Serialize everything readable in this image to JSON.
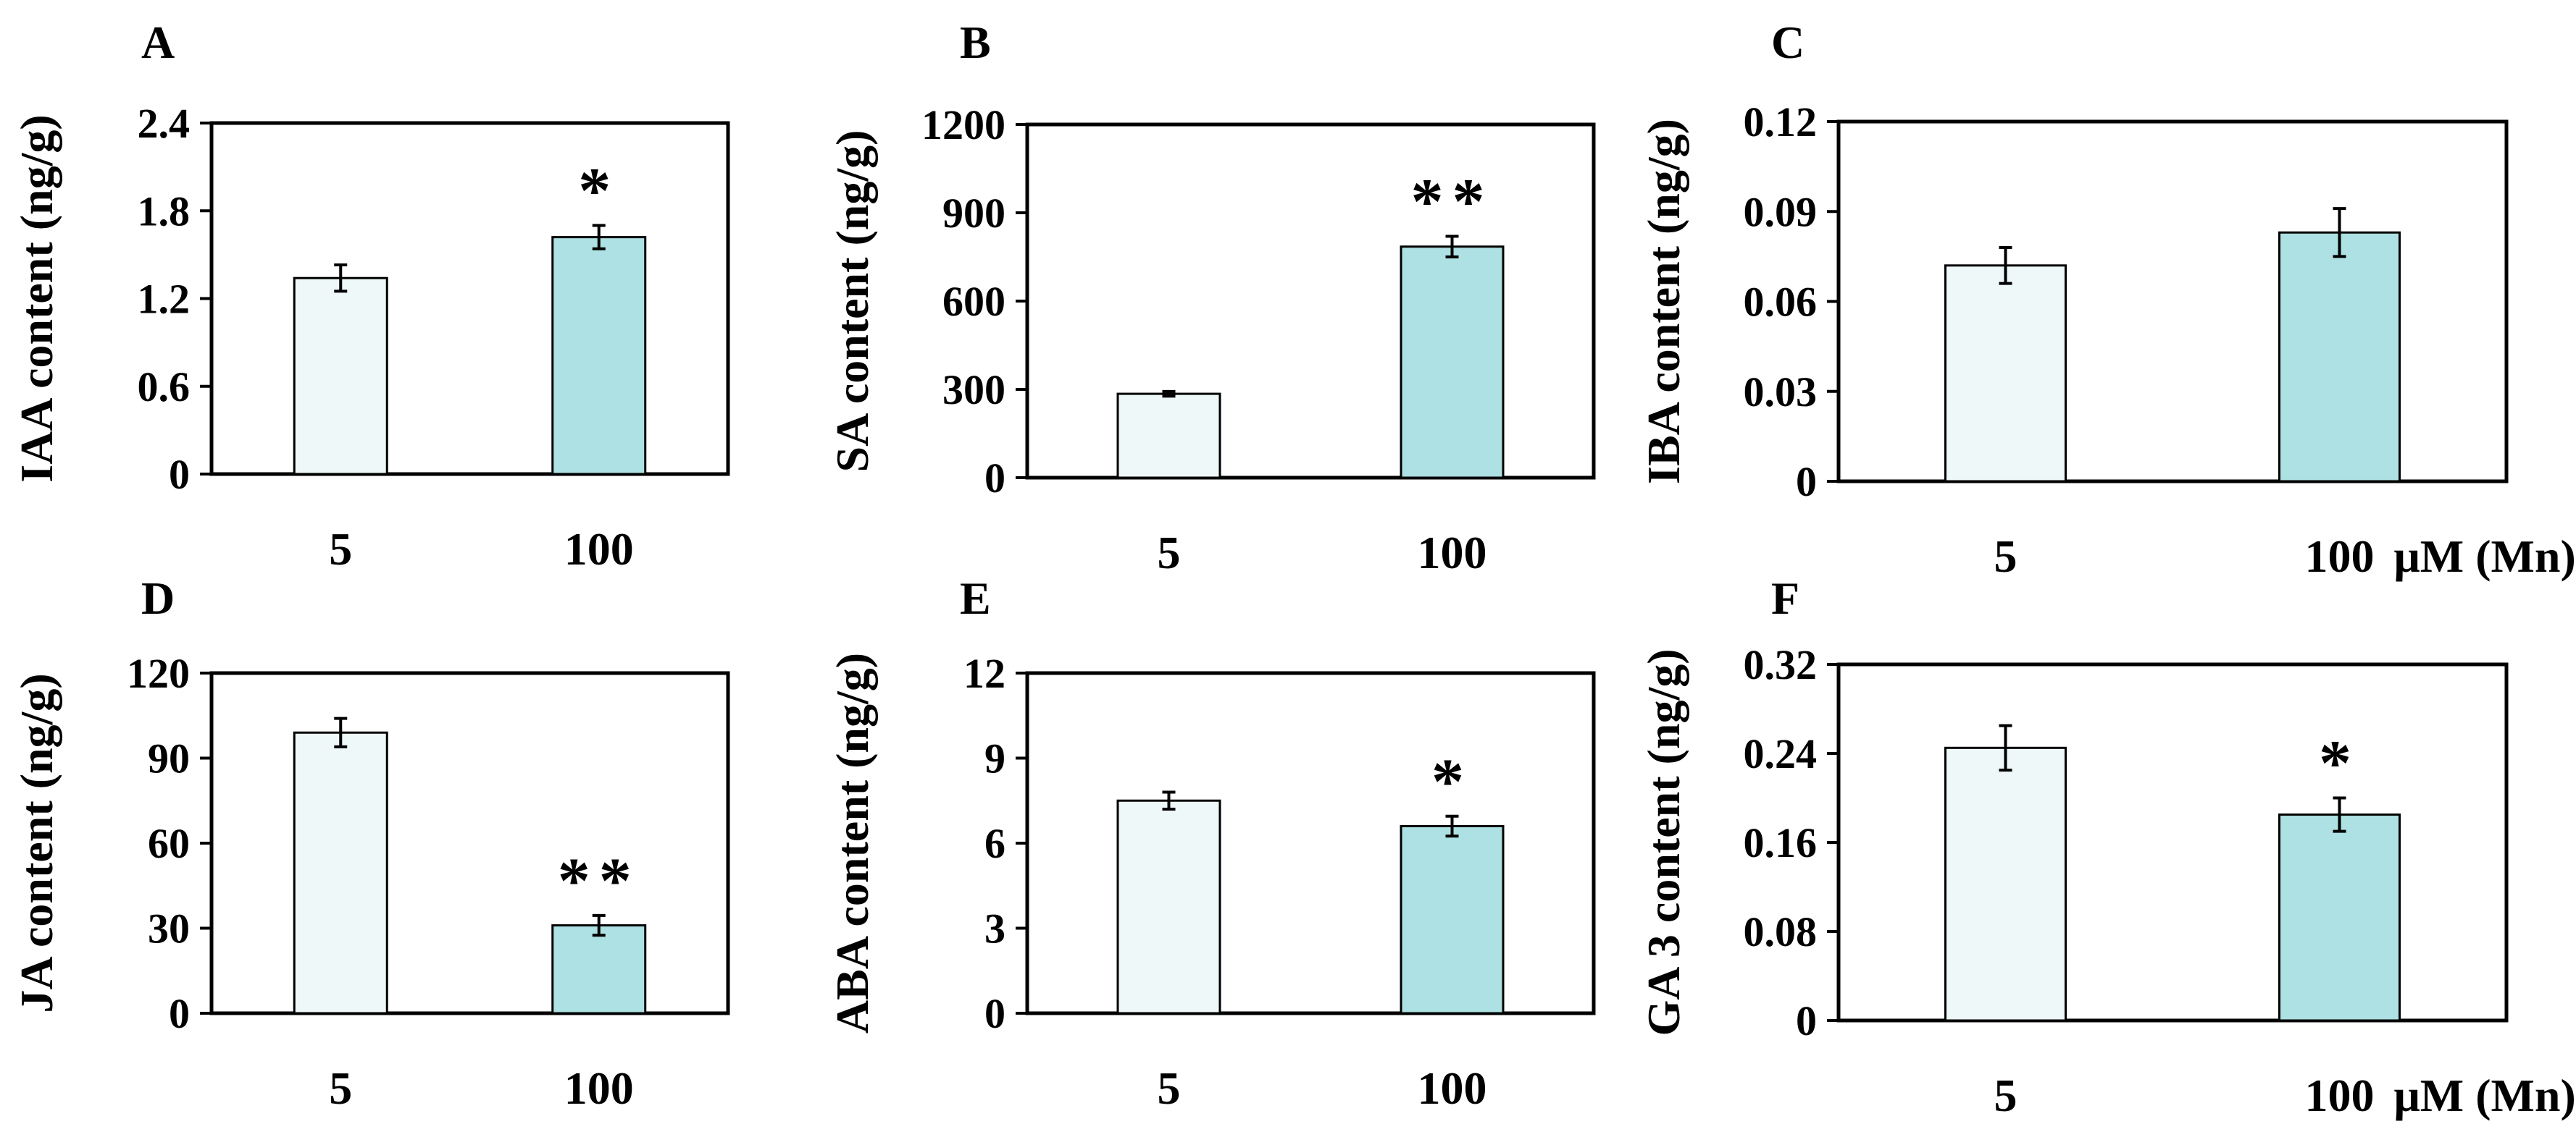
{
  "figure": {
    "x_unit_label": "μM (Mn)",
    "colors": {
      "control": "#eef8f8",
      "treatment": "#aee1e3",
      "axes": "#000000"
    }
  },
  "chart_data": [
    {
      "type": "bar",
      "panel": "A",
      "ylabel": "IAA content (ng/g)",
      "categories": [
        "5",
        "100"
      ],
      "values": [
        1.34,
        1.62
      ],
      "errors": [
        0.09,
        0.08
      ],
      "significance": [
        "",
        "*"
      ],
      "ylim": [
        0,
        2.4
      ],
      "yticks": [
        "0",
        "0.6",
        "1.2",
        "1.8",
        "2.4"
      ],
      "unit_label": ""
    },
    {
      "type": "bar",
      "panel": "B",
      "ylabel": "SA content (ng/g)",
      "categories": [
        "5",
        "100"
      ],
      "values": [
        285,
        785
      ],
      "errors": [
        8,
        35
      ],
      "significance": [
        "",
        "**"
      ],
      "ylim": [
        0,
        1200
      ],
      "yticks": [
        "0",
        "300",
        "600",
        "900",
        "1200"
      ],
      "unit_label": ""
    },
    {
      "type": "bar",
      "panel": "C",
      "ylabel": "IBA content (ng/g)",
      "categories": [
        "5",
        "100"
      ],
      "values": [
        0.072,
        0.083
      ],
      "errors": [
        0.006,
        0.008
      ],
      "significance": [
        "",
        ""
      ],
      "ylim": [
        0,
        0.12
      ],
      "yticks": [
        "0",
        "0.03",
        "0.06",
        "0.09",
        "0.12"
      ],
      "unit_label": "μM (Mn)"
    },
    {
      "type": "bar",
      "panel": "D",
      "ylabel": "JA content (ng/g)",
      "categories": [
        "5",
        "100"
      ],
      "values": [
        99,
        31
      ],
      "errors": [
        5,
        3.5
      ],
      "significance": [
        "",
        "**"
      ],
      "ylim": [
        0,
        120
      ],
      "yticks": [
        "0",
        "30",
        "60",
        "90",
        "120"
      ],
      "unit_label": ""
    },
    {
      "type": "bar",
      "panel": "E",
      "ylabel": "ABA content (ng/g)",
      "categories": [
        "5",
        "100"
      ],
      "values": [
        7.5,
        6.6
      ],
      "errors": [
        0.3,
        0.35
      ],
      "significance": [
        "",
        "*"
      ],
      "ylim": [
        0,
        12
      ],
      "yticks": [
        "0",
        "3",
        "6",
        "9",
        "12"
      ],
      "unit_label": ""
    },
    {
      "type": "bar",
      "panel": "F",
      "ylabel": "GA 3 content (ng/g)",
      "categories": [
        "5",
        "100"
      ],
      "values": [
        0.245,
        0.185
      ],
      "errors": [
        0.02,
        0.015
      ],
      "significance": [
        "",
        "*"
      ],
      "ylim": [
        0,
        0.32
      ],
      "yticks": [
        "0",
        "0.08",
        "0.16",
        "0.24",
        "0.32"
      ],
      "unit_label": "μM (Mn)"
    }
  ]
}
